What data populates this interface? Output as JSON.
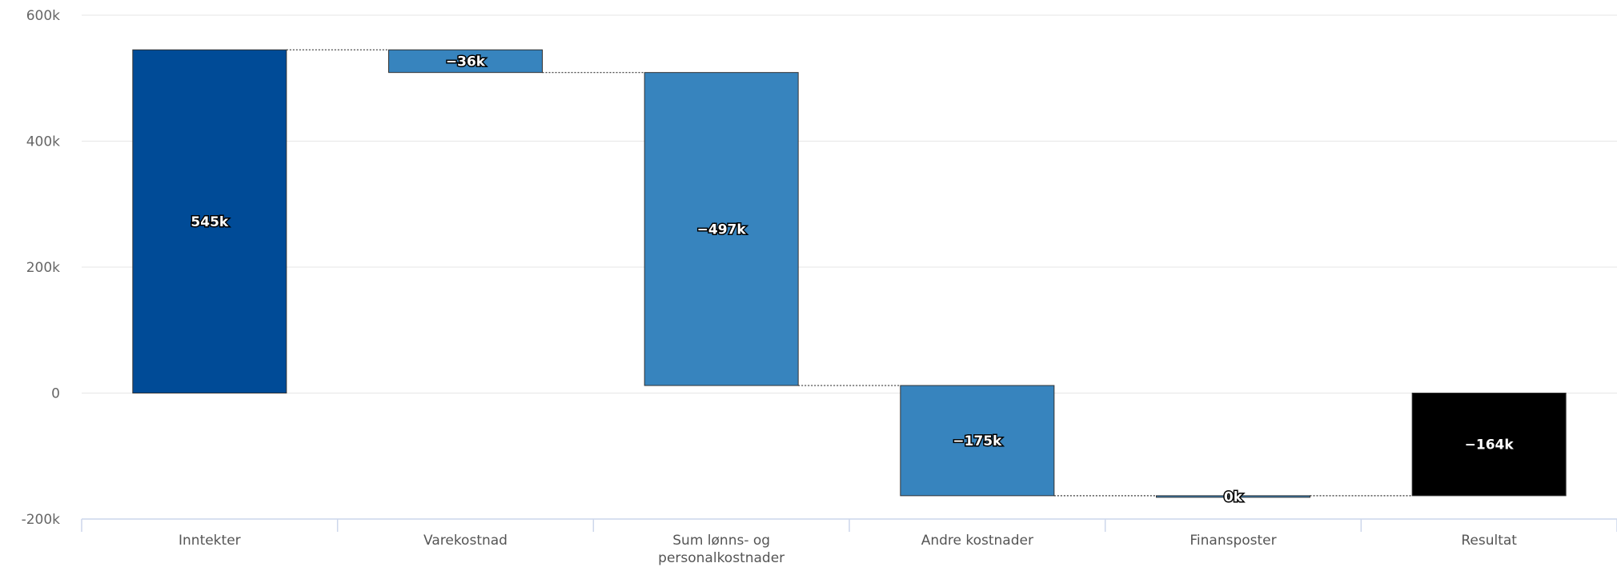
{
  "chart_data": {
    "type": "waterfall",
    "categories": [
      "Inntekter",
      "Varekostnad",
      "Sum lønns- og personalkostnader",
      "Andre kostnader",
      "Finansposter",
      "Resultat"
    ],
    "category_label_lines": [
      [
        "Inntekter"
      ],
      [
        "Varekostnad"
      ],
      [
        "Sum lønns- og",
        "personalkostnader"
      ],
      [
        "Andre kostnader"
      ],
      [
        "Finansposter"
      ],
      [
        "Resultat"
      ]
    ],
    "values": [
      545,
      -36,
      -497,
      -175,
      0,
      -164
    ],
    "value_unit": "thousands",
    "data_labels": [
      "545k",
      "−36k",
      "−497k",
      "−175k",
      "0k",
      "−164k"
    ],
    "is_sum": [
      false,
      false,
      false,
      false,
      false,
      true
    ],
    "colors": [
      "#004b97",
      "#3784be",
      "#3784be",
      "#3784be",
      "#3784be",
      "#000000"
    ],
    "ylim": [
      -200,
      600
    ],
    "yticks": [
      -200,
      0,
      200,
      400,
      600
    ],
    "ytick_labels": [
      "-200k",
      "0",
      "200k",
      "400k",
      "600k"
    ],
    "grid": true,
    "connectors": "dotted",
    "title": "",
    "xlabel": "",
    "ylabel": ""
  }
}
